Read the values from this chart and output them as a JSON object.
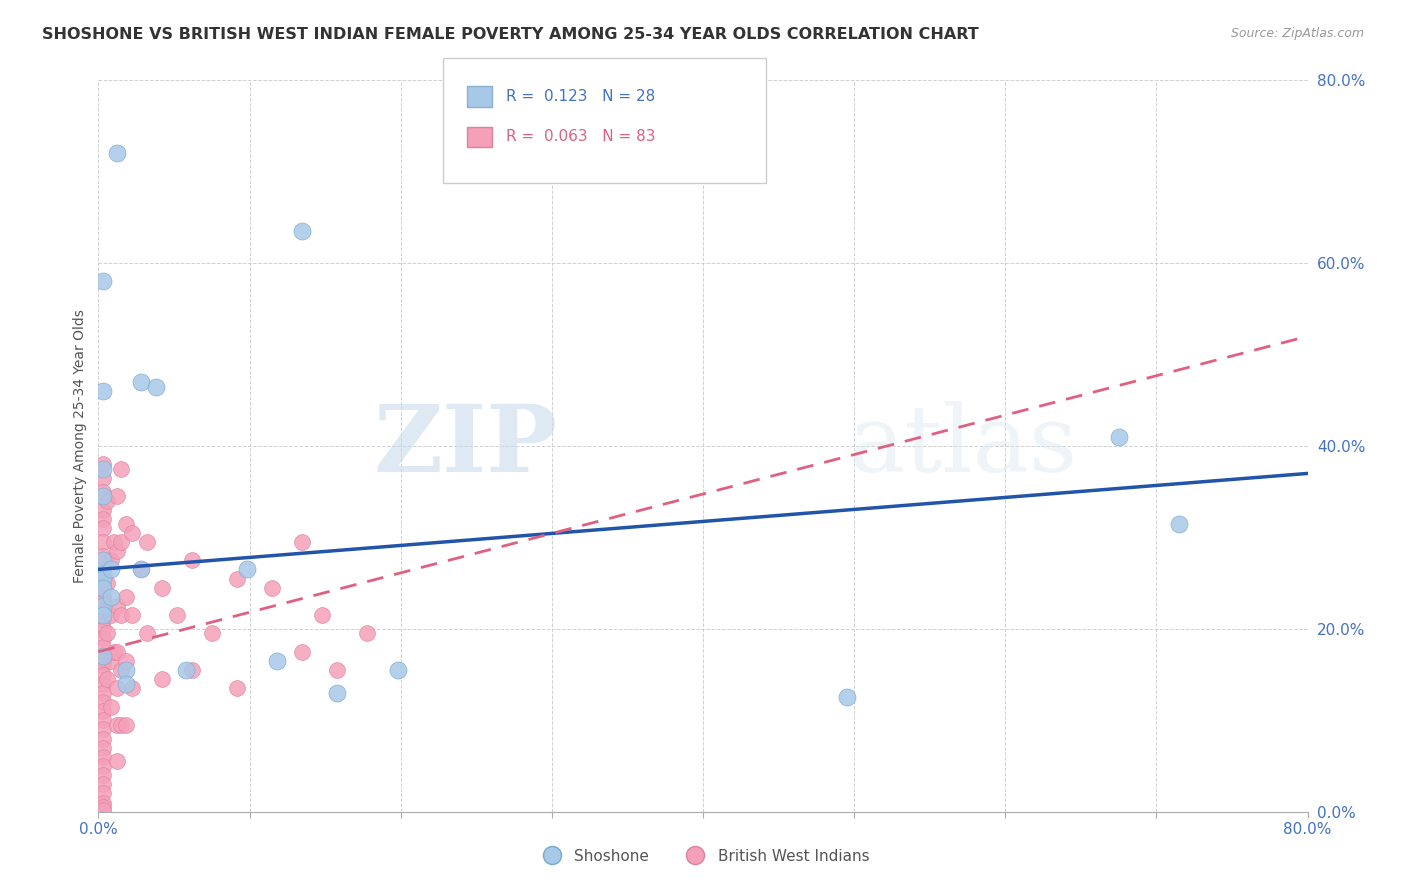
{
  "title": "SHOSHONE VS BRITISH WEST INDIAN FEMALE POVERTY AMONG 25-34 YEAR OLDS CORRELATION CHART",
  "source": "Source: ZipAtlas.com",
  "ylabel": "Female Poverty Among 25-34 Year Olds",
  "xlim": [
    0.0,
    0.8
  ],
  "ylim": [
    0.0,
    0.8
  ],
  "xticks": [
    0.0,
    0.1,
    0.2,
    0.3,
    0.4,
    0.5,
    0.6,
    0.7,
    0.8
  ],
  "yticks": [
    0.0,
    0.2,
    0.4,
    0.6,
    0.8
  ],
  "shoshone_color": "#a8c8e8",
  "bwi_color": "#f4a0b8",
  "shoshone_line_color": "#2255aa",
  "bwi_line_color": "#e06080",
  "legend_r1": "R =  0.123",
  "legend_n1": "N = 28",
  "legend_r2": "R =  0.063",
  "legend_n2": "N = 83",
  "legend_label1": "Shoshone",
  "legend_label2": "British West Indians",
  "axis_color": "#4472c4",
  "watermark_zip": "ZIP",
  "watermark_atlas": "atlas",
  "shoshone_x": [
    0.012,
    0.003,
    0.135,
    0.003,
    0.028,
    0.038,
    0.003,
    0.003,
    0.003,
    0.003,
    0.003,
    0.003,
    0.003,
    0.003,
    0.003,
    0.008,
    0.008,
    0.018,
    0.018,
    0.028,
    0.058,
    0.098,
    0.495,
    0.675,
    0.715,
    0.118,
    0.158,
    0.198
  ],
  "shoshone_y": [
    0.72,
    0.58,
    0.635,
    0.46,
    0.47,
    0.465,
    0.375,
    0.345,
    0.275,
    0.26,
    0.255,
    0.245,
    0.225,
    0.215,
    0.17,
    0.265,
    0.235,
    0.155,
    0.14,
    0.265,
    0.155,
    0.265,
    0.125,
    0.41,
    0.315,
    0.165,
    0.13,
    0.155
  ],
  "bwi_x": [
    0.003,
    0.003,
    0.003,
    0.003,
    0.003,
    0.003,
    0.003,
    0.003,
    0.003,
    0.003,
    0.003,
    0.003,
    0.003,
    0.003,
    0.003,
    0.003,
    0.003,
    0.003,
    0.003,
    0.003,
    0.003,
    0.003,
    0.003,
    0.003,
    0.003,
    0.003,
    0.003,
    0.003,
    0.003,
    0.003,
    0.003,
    0.003,
    0.003,
    0.003,
    0.003,
    0.003,
    0.003,
    0.006,
    0.006,
    0.006,
    0.006,
    0.008,
    0.008,
    0.008,
    0.008,
    0.01,
    0.01,
    0.012,
    0.012,
    0.012,
    0.012,
    0.012,
    0.012,
    0.012,
    0.015,
    0.015,
    0.015,
    0.015,
    0.015,
    0.018,
    0.018,
    0.018,
    0.018,
    0.022,
    0.022,
    0.022,
    0.028,
    0.032,
    0.032,
    0.042,
    0.042,
    0.052,
    0.062,
    0.062,
    0.075,
    0.092,
    0.092,
    0.115,
    0.135,
    0.135,
    0.148,
    0.158,
    0.178
  ],
  "bwi_y": [
    0.38,
    0.365,
    0.35,
    0.33,
    0.32,
    0.31,
    0.295,
    0.28,
    0.265,
    0.255,
    0.25,
    0.235,
    0.23,
    0.22,
    0.21,
    0.2,
    0.19,
    0.18,
    0.165,
    0.16,
    0.15,
    0.14,
    0.13,
    0.12,
    0.11,
    0.1,
    0.09,
    0.08,
    0.07,
    0.06,
    0.05,
    0.04,
    0.03,
    0.02,
    0.01,
    0.005,
    0.002,
    0.34,
    0.25,
    0.195,
    0.145,
    0.275,
    0.215,
    0.165,
    0.115,
    0.295,
    0.175,
    0.345,
    0.285,
    0.225,
    0.175,
    0.135,
    0.095,
    0.055,
    0.375,
    0.295,
    0.215,
    0.155,
    0.095,
    0.315,
    0.235,
    0.165,
    0.095,
    0.305,
    0.215,
    0.135,
    0.265,
    0.295,
    0.195,
    0.245,
    0.145,
    0.215,
    0.275,
    0.155,
    0.195,
    0.255,
    0.135,
    0.245,
    0.295,
    0.175,
    0.215,
    0.155,
    0.195
  ],
  "shoshone_trendline_x": [
    0.0,
    0.8
  ],
  "shoshone_trendline_y": [
    0.265,
    0.37
  ],
  "bwi_trendline_x": [
    0.0,
    0.8
  ],
  "bwi_trendline_y": [
    0.175,
    0.52
  ]
}
